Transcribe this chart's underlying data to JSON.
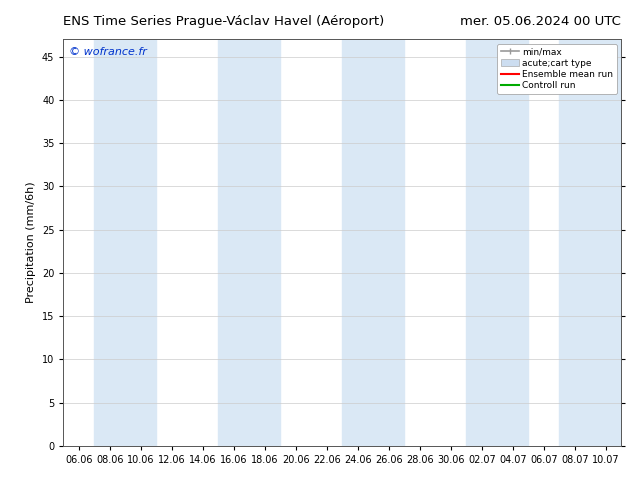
{
  "title_left": "ENS Time Series Prague-Václav Havel (Aéroport)",
  "title_right": "mer. 05.06.2024 00 UTC",
  "ylabel": "Precipitation (mm/6h)",
  "watermark": "© wofrance.fr",
  "watermark_color": "#0033cc",
  "ylim": [
    0,
    47
  ],
  "yticks": [
    0,
    5,
    10,
    15,
    20,
    25,
    30,
    35,
    40,
    45
  ],
  "xtick_labels": [
    "06.06",
    "08.06",
    "10.06",
    "12.06",
    "14.06",
    "16.06",
    "18.06",
    "20.06",
    "22.06",
    "24.06",
    "26.06",
    "28.06",
    "30.06",
    "02.07",
    "04.07",
    "06.07",
    "08.07",
    "10.07"
  ],
  "background_color": "#ffffff",
  "plot_bg_color": "#ffffff",
  "band_color": "#dae8f5",
  "legend_labels": [
    "min/max",
    "acute;cart type",
    "Ensemble mean run",
    "Controll run"
  ],
  "title_fontsize": 9.5,
  "tick_fontsize": 7,
  "ylabel_fontsize": 8,
  "watermark_fontsize": 8
}
